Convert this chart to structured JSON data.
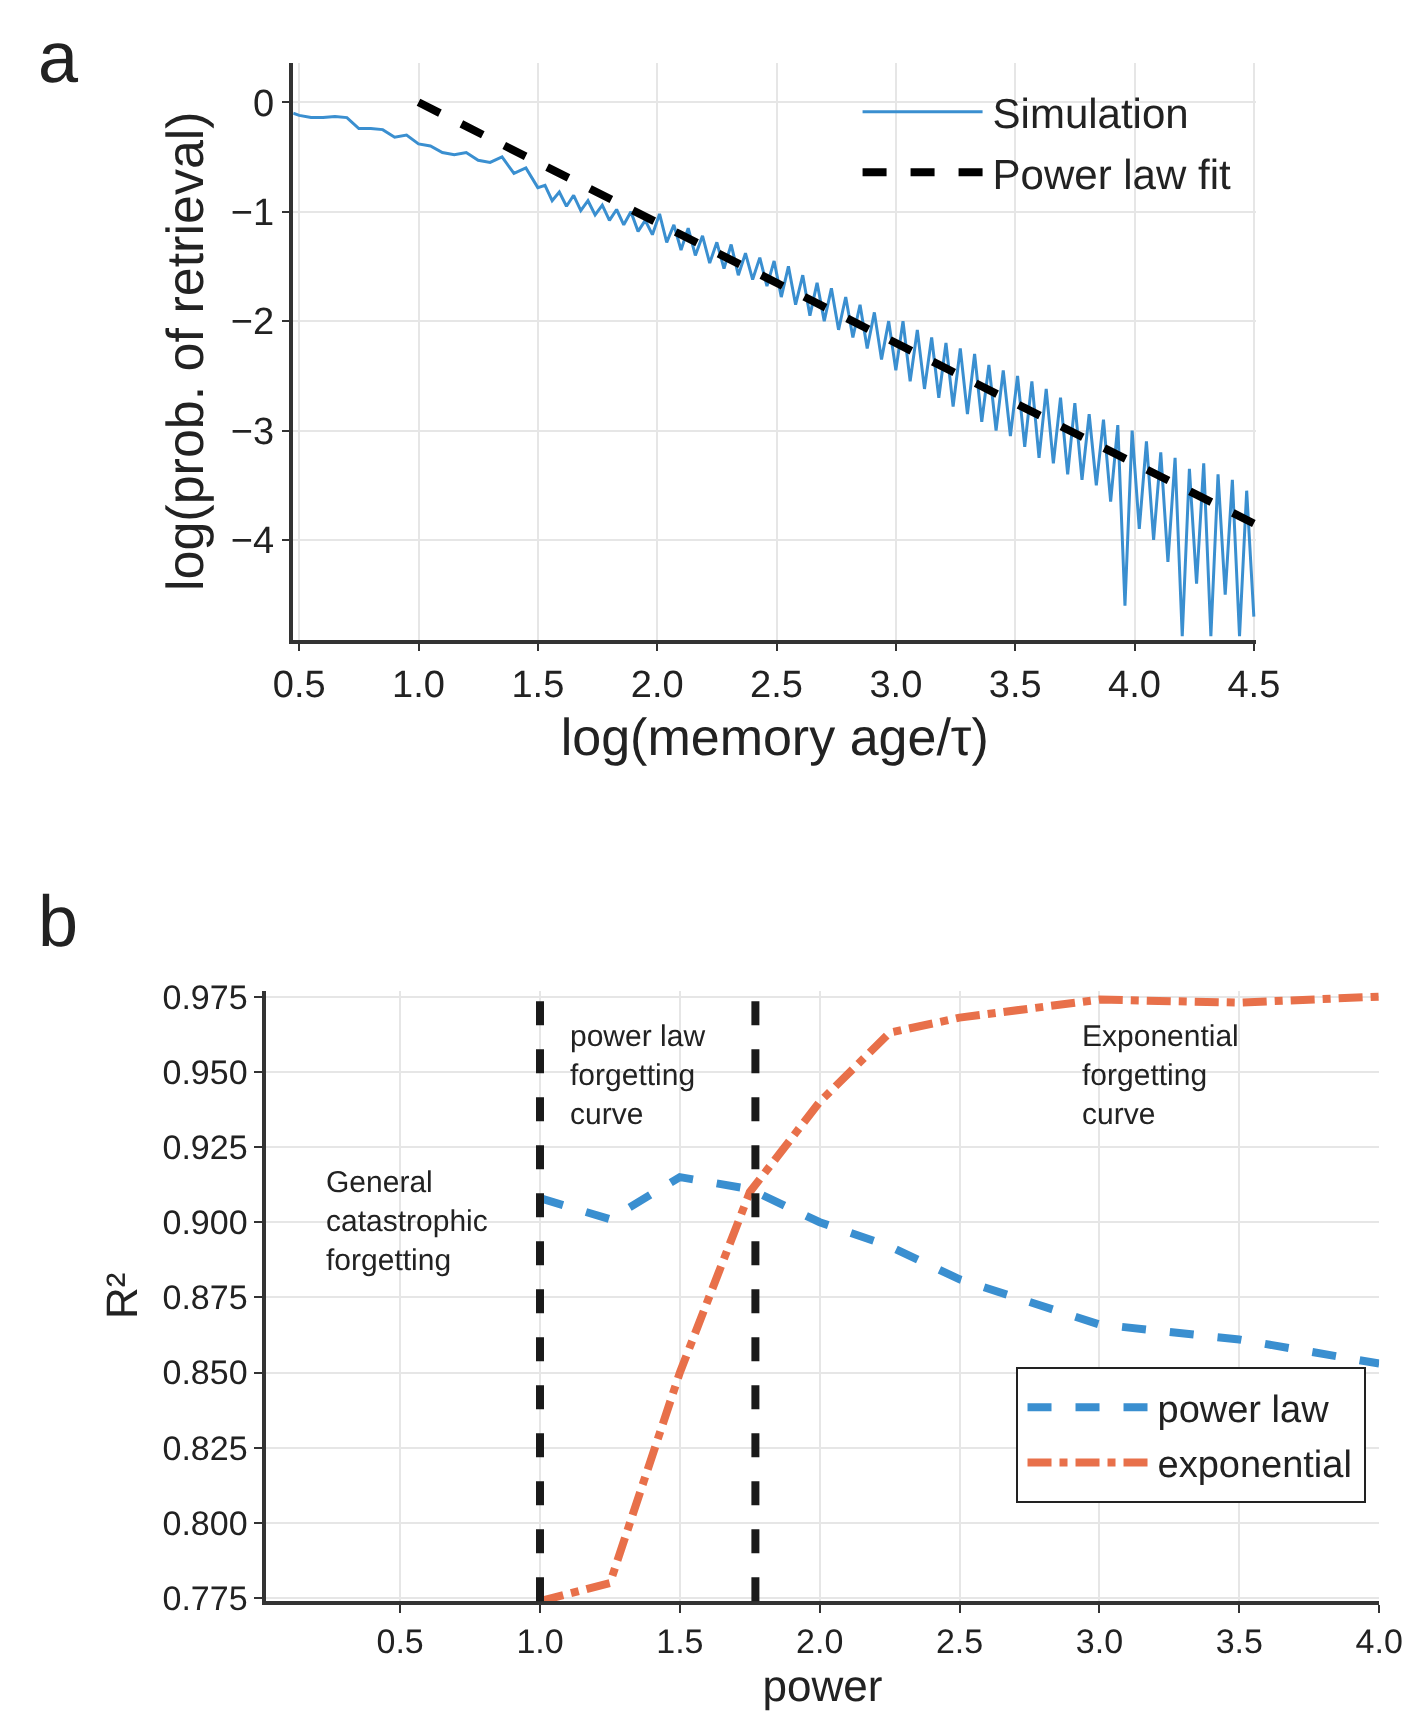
{
  "chart_data": [
    {
      "type": "line",
      "title": "a",
      "xlabel": "log(memory age/τ)",
      "ylabel": "log(prob. of retrieval)",
      "xlim": [
        0.475,
        4.51
      ],
      "ylim": [
        -4.91,
        0.36
      ],
      "xticks": [
        0.5,
        {
          "value": 1,
          "label": "1.0"
        },
        1.5,
        {
          "value": 2,
          "label": "2.0"
        },
        2.5,
        {
          "value": 3,
          "label": "3.0"
        },
        3.5,
        {
          "value": 4,
          "label": "4.0"
        },
        4.5
      ],
      "yticks": [
        0,
        {
          "value": -1,
          "label": "−1"
        },
        {
          "value": -2,
          "label": "−2"
        },
        {
          "value": -3,
          "label": "−3"
        },
        {
          "value": -4,
          "label": "−4"
        }
      ],
      "grid": true,
      "legend": "top right",
      "series": [
        {
          "name": "Simulation",
          "color": "#3a8fd0",
          "line_style": "solid",
          "x": [
            0.475,
            0.5,
            0.55,
            0.6,
            0.65,
            0.7,
            0.75,
            0.8,
            0.85,
            0.9,
            0.95,
            1.0,
            1.05,
            1.1,
            1.15,
            1.2,
            1.25,
            1.3,
            1.35,
            1.4,
            1.45,
            1.5,
            1.53,
            1.56,
            1.59,
            1.62,
            1.65,
            1.68,
            1.71,
            1.74,
            1.77,
            1.8,
            1.83,
            1.86,
            1.89,
            1.92,
            1.95,
            1.98,
            2.01,
            2.04,
            2.07,
            2.1,
            2.13,
            2.16,
            2.19,
            2.22,
            2.25,
            2.28,
            2.31,
            2.34,
            2.37,
            2.4,
            2.43,
            2.46,
            2.49,
            2.52,
            2.55,
            2.58,
            2.61,
            2.64,
            2.67,
            2.7,
            2.73,
            2.76,
            2.79,
            2.82,
            2.85,
            2.88,
            2.91,
            2.94,
            2.97,
            3.0,
            3.03,
            3.06,
            3.09,
            3.12,
            3.15,
            3.18,
            3.21,
            3.24,
            3.27,
            3.3,
            3.33,
            3.36,
            3.39,
            3.42,
            3.45,
            3.48,
            3.51,
            3.54,
            3.57,
            3.6,
            3.63,
            3.66,
            3.69,
            3.72,
            3.75,
            3.78,
            3.81,
            3.84,
            3.87,
            3.9,
            3.93,
            3.96,
            3.99,
            4.02,
            4.05,
            4.08,
            4.11,
            4.14,
            4.17,
            4.2,
            4.23,
            4.26,
            4.29,
            4.32,
            4.35,
            4.38,
            4.41,
            4.44,
            4.47,
            4.5
          ],
          "values": [
            -0.1,
            -0.12,
            -0.14,
            -0.14,
            -0.13,
            -0.14,
            -0.24,
            -0.24,
            -0.25,
            -0.32,
            -0.3,
            -0.38,
            -0.4,
            -0.46,
            -0.48,
            -0.46,
            -0.53,
            -0.55,
            -0.5,
            -0.65,
            -0.6,
            -0.78,
            -0.76,
            -0.9,
            -0.82,
            -0.95,
            -0.85,
            -0.99,
            -0.9,
            -1.03,
            -0.94,
            -1.08,
            -0.98,
            -1.12,
            -1.0,
            -1.18,
            -1.08,
            -1.21,
            -1.02,
            -1.28,
            -1.12,
            -1.35,
            -1.15,
            -1.4,
            -1.22,
            -1.47,
            -1.28,
            -1.52,
            -1.3,
            -1.58,
            -1.38,
            -1.62,
            -1.42,
            -1.68,
            -1.45,
            -1.78,
            -1.5,
            -1.85,
            -1.58,
            -1.95,
            -1.65,
            -2.0,
            -1.7,
            -2.08,
            -1.78,
            -2.15,
            -1.85,
            -2.25,
            -1.92,
            -2.35,
            -2.0,
            -2.45,
            -2.0,
            -2.55,
            -2.08,
            -2.62,
            -2.15,
            -2.7,
            -2.2,
            -2.78,
            -2.25,
            -2.85,
            -2.3,
            -2.92,
            -2.4,
            -3.0,
            -2.45,
            -3.05,
            -2.5,
            -3.15,
            -2.55,
            -3.25,
            -2.62,
            -3.3,
            -2.7,
            -3.4,
            -2.75,
            -3.45,
            -2.85,
            -3.5,
            -2.9,
            -3.65,
            -2.95,
            -4.6,
            -3.0,
            -3.9,
            -3.1,
            -4.0,
            -3.2,
            -4.2,
            -3.25,
            -4.88,
            -3.35,
            -4.4,
            -3.3,
            -4.88,
            -3.4,
            -4.5,
            -3.45,
            -4.88,
            -3.55,
            -4.7
          ]
        },
        {
          "name": "Power law fit",
          "color": "#000000",
          "line_style": "dashed",
          "x": [
            1.0,
            4.5
          ],
          "values": [
            0.0,
            -3.85
          ]
        }
      ]
    },
    {
      "type": "line",
      "title": "b",
      "xlabel": "power",
      "ylabel": "R²",
      "xlim": [
        0.02,
        4.0
      ],
      "ylim": [
        0.774,
        0.977
      ],
      "xticks": [
        0.5,
        {
          "value": 1,
          "label": "1.0"
        },
        1.5,
        {
          "value": 2,
          "label": "2.0"
        },
        2.5,
        {
          "value": 3,
          "label": "3.0"
        },
        3.5,
        {
          "value": 4,
          "label": "4.0"
        }
      ],
      "yticks": [
        0.775,
        {
          "value": 0.8,
          "label": "0.800"
        },
        0.825,
        {
          "value": 0.85,
          "label": "0.850"
        },
        0.875,
        {
          "value": 0.9,
          "label": "0.900"
        },
        0.925,
        {
          "value": 0.95,
          "label": "0.950"
        },
        0.975
      ],
      "grid": true,
      "legend": "bottom right",
      "annotations": [
        "General\ncatastrophic\nforgetting",
        "power law\nforgetting\ncurve",
        "Exponential\nforgetting\ncurve"
      ],
      "ref_lines": [
        {
          "axis": "x",
          "value": 1.0,
          "color": "#1a1a1a",
          "line_style": "dashed"
        },
        {
          "axis": "x",
          "value": 1.77,
          "color": "#1a1a1a",
          "line_style": "dashed"
        }
      ],
      "series": [
        {
          "name": "power law",
          "color": "#3a8fd0",
          "line_style": "dashed",
          "x": [
            1.0,
            1.25,
            1.5,
            1.75,
            2.0,
            2.25,
            2.5,
            3.0,
            3.5,
            4.0
          ],
          "values": [
            0.908,
            0.901,
            0.915,
            0.911,
            0.9,
            0.892,
            0.881,
            0.866,
            0.861,
            0.853
          ]
        },
        {
          "name": "exponential",
          "color": "#e8704a",
          "line_style": "dashdot",
          "x": [
            1.0,
            1.25,
            1.5,
            1.75,
            2.0,
            2.25,
            2.5,
            3.0,
            3.5,
            4.0
          ],
          "values": [
            0.774,
            0.78,
            0.85,
            0.91,
            0.94,
            0.963,
            0.968,
            0.974,
            0.973,
            0.975
          ]
        }
      ]
    }
  ]
}
